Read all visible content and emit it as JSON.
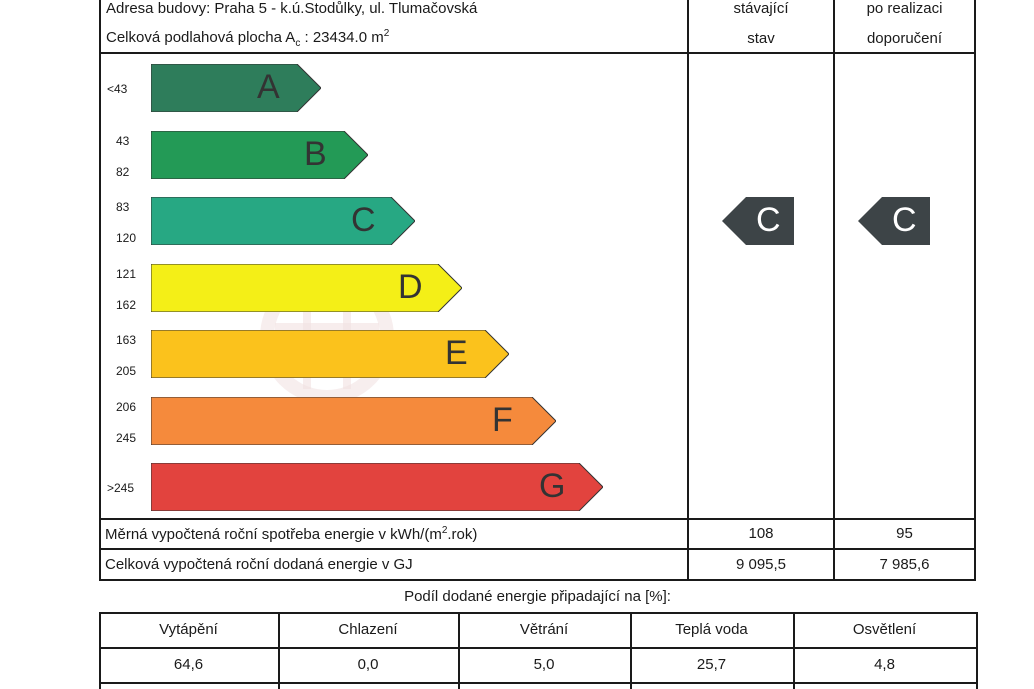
{
  "header": {
    "address": "Adresa budovy: Praha 5 - k.ú.Stodůlky, ul. Tlumačovská",
    "floor_area_prefix": "Celková podlahová plocha A",
    "floor_area_sub": "c",
    "floor_area_value": " : 23434.0 m",
    "floor_area_sup": "2",
    "col_current_line1": "stávající",
    "col_current_line2": "stav",
    "col_after_line1": "po realizaci",
    "col_after_line2": "doporučení"
  },
  "classes": [
    {
      "letter": "A",
      "low": "<43",
      "high": "",
      "color": "#2e7d5b"
    },
    {
      "letter": "B",
      "low": "43",
      "high": "82",
      "color": "#239a56"
    },
    {
      "letter": "C",
      "low": "83",
      "high": "120",
      "color": "#27a883"
    },
    {
      "letter": "D",
      "low": "121",
      "high": "162",
      "color": "#f4ef17"
    },
    {
      "letter": "E",
      "low": "163",
      "high": "205",
      "color": "#fbc21c"
    },
    {
      "letter": "F",
      "low": "206",
      "high": "245",
      "color": "#f58a3c"
    },
    {
      "letter": "G",
      "low": ">245",
      "high": "",
      "color": "#e2433e"
    }
  ],
  "current_class": "C",
  "after_class": "C",
  "indicator_color": "#3d4447",
  "rows": {
    "specific_label": "Měrná vypočtená roční spotřeba energie v kWh/(m",
    "specific_sup": "2",
    "specific_suffix": ".rok)",
    "specific_current": "108",
    "specific_after": "95",
    "total_label": "Celková vypočtená roční dodaná energie v GJ",
    "total_current": "9 095,5",
    "total_after": "7 985,6"
  },
  "share": {
    "title": "Podíl dodané energie připadající na [%]:",
    "headers": [
      "Vytápění",
      "Chlazení",
      "Větrání",
      "Teplá voda",
      "Osvětlení"
    ],
    "values": [
      "64,6",
      "0,0",
      "5,0",
      "25,7",
      "4,8"
    ]
  }
}
